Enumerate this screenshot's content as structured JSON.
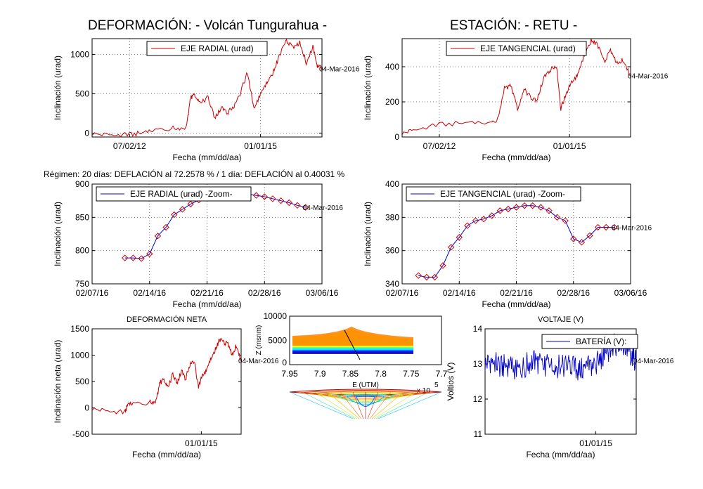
{
  "suptitle_left": "DEFORMACIÓN: - Volcán Tungurahua -",
  "suptitle_right": "ESTACIÓN: - RETU -",
  "regimen_text": "Régimen: 20 días: DEFLACIÓN al 72.2578 % / 1 día: DEFLACIÓN al 0.40031 %",
  "colors": {
    "radial": "#cc0000",
    "tangential": "#cc0000",
    "zoom": "#0000cc",
    "marker": "#cc0000",
    "battery": "#0000cc"
  },
  "chart_data": [
    {
      "id": "radial",
      "type": "line",
      "xlabel": "Fecha (mm/dd/aa)",
      "ylabel": "Inclinación (urad)",
      "legend": "EJE RADIAL (urad)",
      "legend_position": "top-center",
      "end_label": "04-Mar-2016",
      "xlim": [
        "2011-10-15",
        "2016-03-04"
      ],
      "ylim": [
        -50,
        1200
      ],
      "yticks": [
        0,
        500,
        1000
      ],
      "xticks": [
        {
          "date": "2012-07-02",
          "label": "07/02/12"
        },
        {
          "date": "2015-01-01",
          "label": "01/01/15"
        }
      ],
      "x": [
        "2011-10-15",
        "2012-03-01",
        "2012-07-01",
        "2012-10-01",
        "2013-01-01",
        "2013-05-01",
        "2013-08-01",
        "2013-09-01",
        "2013-10-01",
        "2013-11-15",
        "2014-01-01",
        "2014-02-15",
        "2014-04-01",
        "2014-05-15",
        "2014-07-01",
        "2014-08-15",
        "2014-10-01",
        "2014-11-15",
        "2015-01-01",
        "2015-02-15",
        "2015-04-01",
        "2015-05-15",
        "2015-07-01",
        "2015-08-15",
        "2015-10-01",
        "2015-11-15",
        "2016-01-01",
        "2016-02-01",
        "2016-03-04"
      ],
      "y": [
        -10,
        -25,
        -20,
        0,
        40,
        60,
        70,
        450,
        480,
        380,
        460,
        180,
        320,
        260,
        330,
        520,
        770,
        330,
        480,
        650,
        780,
        1000,
        1180,
        1080,
        1150,
        900,
        1100,
        850,
        820
      ],
      "grid": true
    },
    {
      "id": "tangential",
      "type": "line",
      "xlabel": "Fecha (mm/dd/aa)",
      "ylabel": "Inclinación (urad)",
      "legend": "EJE TANGENCIAL (urad)",
      "legend_position": "top-center",
      "end_label": "04-Mar-2016",
      "xlim": [
        "2011-10-15",
        "2016-03-04"
      ],
      "ylim": [
        0,
        560
      ],
      "yticks": [
        0,
        200,
        400
      ],
      "xticks": [
        {
          "date": "2012-07-02",
          "label": "07/02/12"
        },
        {
          "date": "2015-01-01",
          "label": "01/01/15"
        }
      ],
      "x": [
        "2011-10-15",
        "2012-01-01",
        "2012-07-01",
        "2013-01-01",
        "2013-07-01",
        "2013-08-15",
        "2013-10-01",
        "2013-11-15",
        "2014-01-01",
        "2014-02-15",
        "2014-04-01",
        "2014-05-15",
        "2014-07-01",
        "2014-08-15",
        "2014-10-01",
        "2014-11-01",
        "2014-12-01",
        "2015-01-15",
        "2015-03-01",
        "2015-04-15",
        "2015-06-01",
        "2015-07-15",
        "2015-09-01",
        "2015-10-15",
        "2015-12-01",
        "2016-01-15",
        "2016-03-04"
      ],
      "y": [
        20,
        40,
        70,
        80,
        80,
        100,
        280,
        290,
        160,
        270,
        230,
        200,
        330,
        380,
        400,
        160,
        230,
        320,
        350,
        470,
        550,
        530,
        430,
        490,
        420,
        440,
        350
      ],
      "grid": true
    },
    {
      "id": "radial-zoom",
      "type": "line",
      "xlabel": "Fecha (mm/dd/aa)",
      "ylabel": "Inclinación (urad)",
      "legend": "EJE RADIAL (urad) -Zoom-",
      "legend_position": "top-center",
      "end_label": "04-Mar-2016",
      "xlim": [
        "2016-02-07",
        "2016-03-06"
      ],
      "ylim": [
        750,
        900
      ],
      "yticks": [
        750,
        800,
        850,
        900
      ],
      "xticks": [
        {
          "date": "2016-02-07",
          "label": "02/07/16"
        },
        {
          "date": "2016-02-14",
          "label": "02/14/16"
        },
        {
          "date": "2016-02-21",
          "label": "02/21/16"
        },
        {
          "date": "2016-02-28",
          "label": "02/28/16"
        },
        {
          "date": "2016-03-06",
          "label": "03/06/16"
        }
      ],
      "x": [
        "2016-02-11",
        "2016-02-12",
        "2016-02-13",
        "2016-02-14",
        "2016-02-15",
        "2016-02-16",
        "2016-02-17",
        "2016-02-18",
        "2016-02-19",
        "2016-02-20",
        "2016-02-21",
        "2016-02-22",
        "2016-02-23",
        "2016-02-24",
        "2016-02-25",
        "2016-02-26",
        "2016-02-27",
        "2016-02-28",
        "2016-02-29",
        "2016-03-01",
        "2016-03-02",
        "2016-03-03",
        "2016-03-04"
      ],
      "y": [
        789,
        789,
        788,
        795,
        822,
        835,
        854,
        862,
        870,
        876,
        879,
        882,
        884,
        886,
        887,
        885,
        883,
        881,
        878,
        875,
        872,
        868,
        865
      ],
      "grid": true
    },
    {
      "id": "tangential-zoom",
      "type": "line",
      "xlabel": "Fecha (mm/dd/aa)",
      "ylabel": "Inclinación (urad)",
      "legend": "EJE TANGENCIAL (urad) -Zoom-",
      "legend_position": "top-center",
      "end_label": "04-Mar-2016",
      "xlim": [
        "2016-02-07",
        "2016-03-06"
      ],
      "ylim": [
        340,
        400
      ],
      "yticks": [
        340,
        360,
        380,
        400
      ],
      "xticks": [
        {
          "date": "2016-02-07",
          "label": "02/07/16"
        },
        {
          "date": "2016-02-14",
          "label": "02/14/16"
        },
        {
          "date": "2016-02-21",
          "label": "02/21/16"
        },
        {
          "date": "2016-02-28",
          "label": "02/28/16"
        },
        {
          "date": "2016-03-06",
          "label": "03/06/16"
        }
      ],
      "x": [
        "2016-02-09",
        "2016-02-10",
        "2016-02-11",
        "2016-02-12",
        "2016-02-13",
        "2016-02-14",
        "2016-02-15",
        "2016-02-16",
        "2016-02-17",
        "2016-02-18",
        "2016-02-19",
        "2016-02-20",
        "2016-02-21",
        "2016-02-22",
        "2016-02-23",
        "2016-02-24",
        "2016-02-25",
        "2016-02-26",
        "2016-02-27",
        "2016-02-28",
        "2016-02-29",
        "2016-03-01",
        "2016-03-02",
        "2016-03-03",
        "2016-03-04"
      ],
      "y": [
        345,
        344,
        344,
        351,
        362,
        368,
        375,
        378,
        379,
        381,
        384,
        385,
        386,
        387,
        387,
        386,
        384,
        380,
        378,
        367,
        365,
        369,
        374,
        374,
        374
      ],
      "grid": true
    },
    {
      "id": "deformacion-neta",
      "type": "line",
      "title": "DEFORMACIÓN NETA",
      "xlabel": "Fecha (mm/dd/aa)",
      "ylabel": "Inclinación neta (urad)",
      "end_label": "04-Mar-2016",
      "xlim": [
        "2011-10-15",
        "2016-03-04"
      ],
      "ylim": [
        -500,
        1500
      ],
      "yticks": [
        -500,
        0,
        500,
        1000,
        1500
      ],
      "xticks": [
        {
          "date": "2015-01-01",
          "label": "01/01/15"
        }
      ],
      "x": [
        "2011-10-15",
        "2012-04-01",
        "2012-10-01",
        "2012-11-01",
        "2013-01-01",
        "2013-07-01",
        "2013-09-01",
        "2013-10-15",
        "2013-12-01",
        "2014-01-15",
        "2014-03-01",
        "2014-04-15",
        "2014-06-01",
        "2014-07-15",
        "2014-09-01",
        "2014-10-15",
        "2014-12-01",
        "2015-01-15",
        "2015-03-01",
        "2015-04-15",
        "2015-06-01",
        "2015-07-15",
        "2015-09-01",
        "2015-10-15",
        "2015-12-01",
        "2016-01-15",
        "2016-03-04"
      ],
      "y": [
        -20,
        -60,
        -90,
        60,
        80,
        100,
        130,
        480,
        520,
        400,
        650,
        450,
        700,
        550,
        800,
        900,
        400,
        650,
        700,
        950,
        1100,
        1300,
        1250,
        1200,
        1000,
        1200,
        900
      ],
      "grid": false
    },
    {
      "id": "voltaje",
      "type": "line",
      "title": "VOLTAJE (V)",
      "xlabel": "Fecha (mm/dd/aa)",
      "ylabel": "Voltios (V)",
      "legend": "BATERÍA (V):",
      "legend_position": "top-right",
      "end_label": "04-Mar-2016",
      "xlim": [
        "2011-10-15",
        "2016-03-04"
      ],
      "ylim": [
        11,
        14
      ],
      "yticks": [
        11,
        12,
        13,
        14
      ],
      "xticks": [
        {
          "date": "2015-01-01",
          "label": "01/01/15"
        }
      ],
      "x": [
        "2011-10-15",
        "2012-01-01",
        "2012-04-01",
        "2012-07-01",
        "2012-10-01",
        "2013-01-01",
        "2013-04-01",
        "2013-07-01",
        "2013-10-01",
        "2014-01-01",
        "2014-04-01",
        "2014-07-01",
        "2014-10-01",
        "2015-01-01",
        "2015-04-01",
        "2015-07-01",
        "2015-10-01",
        "2016-01-01",
        "2016-03-04"
      ],
      "y": [
        13.0,
        13.1,
        12.9,
        13.0,
        12.8,
        13.0,
        13.1,
        12.9,
        13.0,
        12.9,
        13.0,
        12.8,
        12.9,
        13.0,
        13.2,
        13.5,
        13.6,
        13.3,
        13.1
      ],
      "grid": false
    },
    {
      "id": "surface-3d",
      "type": "other",
      "xlabel": "E (UTM)",
      "ylabel": "Z (msnm)",
      "x_multiplier": "x 10",
      "x_multiplier_exp": "5",
      "xticks": [
        "7.95",
        "7.9",
        "7.85",
        "7.8",
        "7.75",
        "7.7"
      ],
      "zticks": [
        "0",
        "5000",
        "10000"
      ]
    }
  ]
}
